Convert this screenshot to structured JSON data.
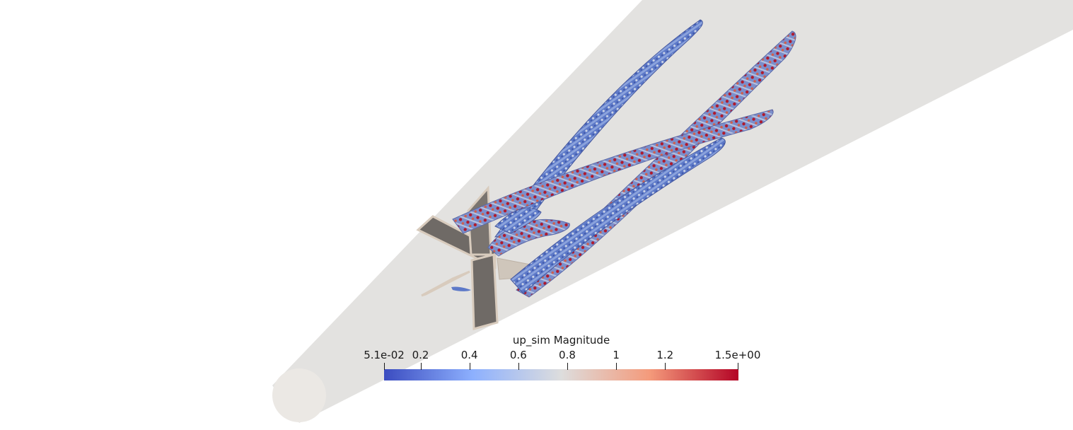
{
  "colorbar": {
    "title": "up_sim Magnitude",
    "range": [
      0.051,
      1.5
    ],
    "ticks": [
      {
        "value": 0.051,
        "label": "5.1e-02"
      },
      {
        "value": 0.2,
        "label": "0.2"
      },
      {
        "value": 0.4,
        "label": "0.4"
      },
      {
        "value": 0.6,
        "label": "0.6"
      },
      {
        "value": 0.8,
        "label": "0.8"
      },
      {
        "value": 1.0,
        "label": "1"
      },
      {
        "value": 1.2,
        "label": "1.2"
      },
      {
        "value": 1.5,
        "label": "1.5e+00"
      }
    ],
    "colormap": [
      "#3b4cc0",
      "#8db0fe",
      "#dddddd",
      "#f49a7b",
      "#b40426"
    ]
  },
  "colors": {
    "background": "#ffffff",
    "domain": "#e3e2e0",
    "domain_end": "#ebe8e4",
    "fin_dark": "#6f6a66",
    "fin_edge": "#d8cbbd"
  }
}
